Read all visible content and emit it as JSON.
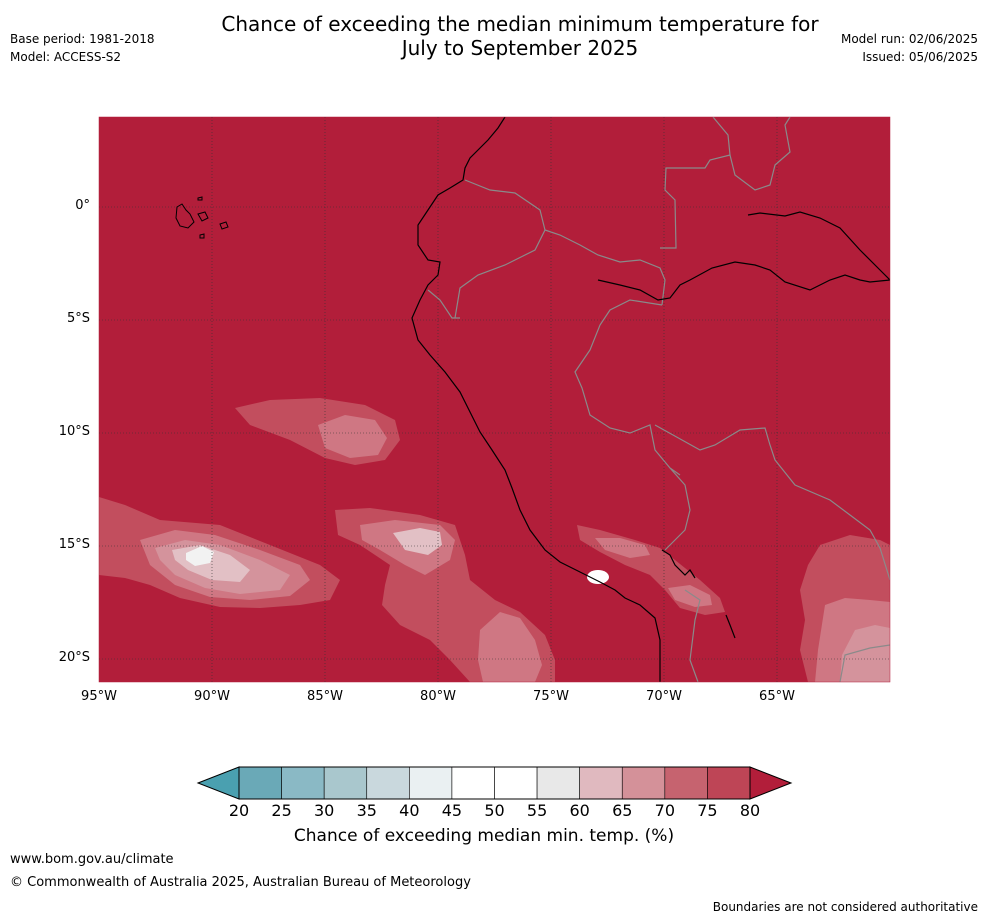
{
  "meta": {
    "base_period": "Base period: 1981-2018",
    "model": "Model: ACCESS-S2",
    "model_run": "Model run: 02/06/2025",
    "issued": "Issued: 05/06/2025"
  },
  "title_line1": "Chance of exceeding the median minimum temperature for",
  "title_line2": "July to September 2025",
  "map": {
    "lat_labels": [
      "0°",
      "5°S",
      "10°S",
      "15°S",
      "20°S"
    ],
    "lon_labels": [
      "95°W",
      "90°W",
      "85°W",
      "80°W",
      "75°W",
      "70°W",
      "65°W"
    ],
    "background_color": "#b21e3a"
  },
  "colorbar": {
    "labels": [
      "20",
      "25",
      "30",
      "35",
      "40",
      "45",
      "50",
      "55",
      "60",
      "65",
      "70",
      "75",
      "80"
    ],
    "colors": [
      "#6aa9b7",
      "#8ab9c5",
      "#a9c7cd",
      "#c9d8dd",
      "#eaf0f2",
      "#ffffff",
      "#ffffff",
      "#e8e8e8",
      "#e0b9bf",
      "#d49199",
      "#c6636f",
      "#be4556"
    ],
    "under_color": "#4aa0b0",
    "over_color": "#b21e3a",
    "title": "Chance of exceeding median min. temp. (%)"
  },
  "footer": {
    "url": "www.bom.gov.au/climate",
    "copyright": "© Commonwealth of Australia 2025, Australian Bureau of Meteorology",
    "disclaimer": "Boundaries are not considered authoritative"
  }
}
